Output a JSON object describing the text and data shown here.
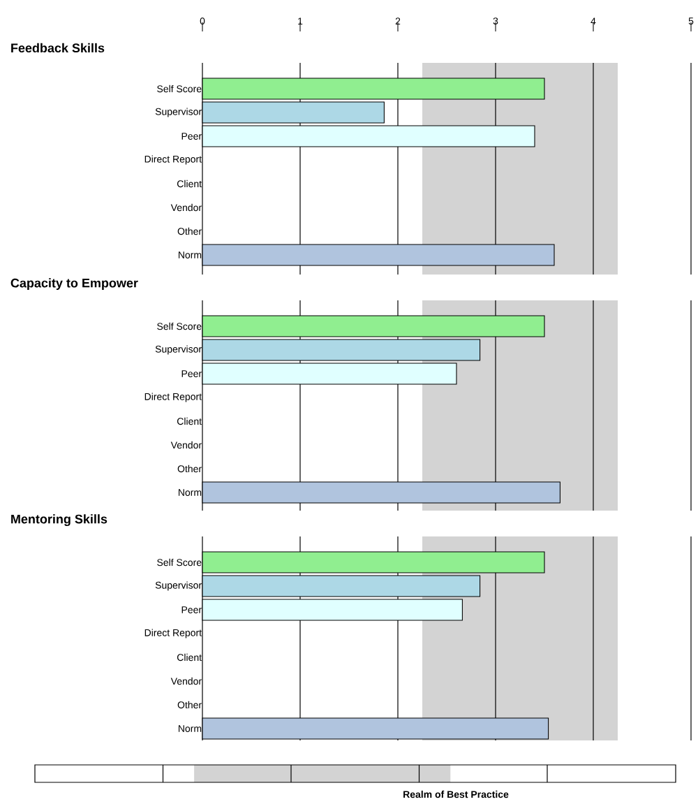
{
  "chart_data": [
    {
      "type": "bar",
      "orientation": "horizontal",
      "title": "Feedback Skills",
      "categories": [
        "Self Score",
        "Supervisor",
        "Peer",
        "Direct Report",
        "Client",
        "Vendor",
        "Other",
        "Norm"
      ],
      "values": [
        3.5,
        1.86,
        3.4,
        null,
        null,
        null,
        null,
        3.6
      ],
      "colors": [
        "#90ee90",
        "#add8e6",
        "#e0ffff",
        null,
        null,
        null,
        null,
        "#b0c4de"
      ],
      "xlim": [
        0,
        5
      ],
      "xticks": [
        0,
        1,
        2,
        3,
        4,
        5
      ],
      "grid": "x",
      "bands": [
        {
          "axis": "x",
          "from": 2.25,
          "to": 4.25,
          "color": "#d3d3d3"
        }
      ]
    },
    {
      "type": "bar",
      "orientation": "horizontal",
      "title": "Capacity to Empower",
      "categories": [
        "Self Score",
        "Supervisor",
        "Peer",
        "Direct Report",
        "Client",
        "Vendor",
        "Other",
        "Norm"
      ],
      "values": [
        3.5,
        2.84,
        2.6,
        null,
        null,
        null,
        null,
        3.66
      ],
      "colors": [
        "#90ee90",
        "#add8e6",
        "#e0ffff",
        null,
        null,
        null,
        null,
        "#b0c4de"
      ],
      "xlim": [
        0,
        5
      ],
      "xticks": [
        0,
        1,
        2,
        3,
        4,
        5
      ],
      "grid": "x",
      "tick_labels": "y",
      "bands": [
        {
          "axis": "x",
          "from": 2.25,
          "to": 4.25,
          "color": "#d3d3d3"
        }
      ]
    },
    {
      "type": "bar",
      "orientation": "horizontal",
      "title": "Mentoring Skills",
      "categories": [
        "Self Score",
        "Supervisor",
        "Peer",
        "Direct Report",
        "Client",
        "Vendor",
        "Other",
        "Norm"
      ],
      "values": [
        3.5,
        2.84,
        2.66,
        null,
        null,
        null,
        null,
        3.54
      ],
      "colors": [
        "#90ee90",
        "#add8e6",
        "#e0ffff",
        null,
        null,
        null,
        null,
        "#b0c4de"
      ],
      "xlim": [
        0,
        5
      ],
      "xticks": [
        0,
        1,
        2,
        3,
        4,
        5
      ],
      "grid": "x",
      "tick_labels": "y",
      "bands": [
        {
          "axis": "x",
          "from": 2.25,
          "to": 4.25,
          "color": "#d3d3d3"
        }
      ],
      "annotations": [
        "Realm of Best Practice"
      ]
    }
  ]
}
